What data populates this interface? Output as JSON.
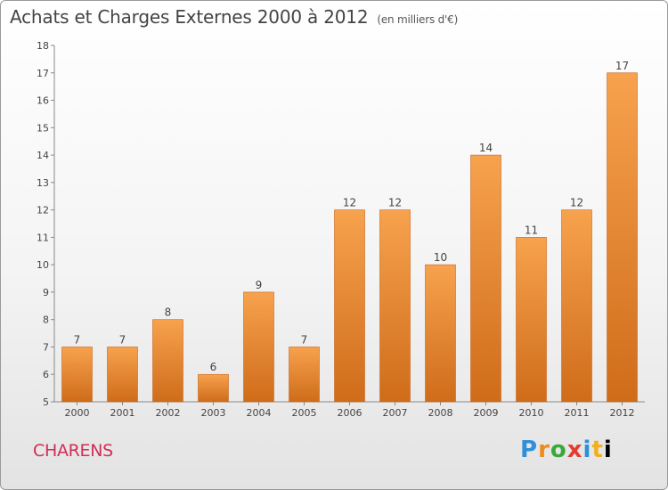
{
  "header": {
    "title": "Achats et Charges Externes 2000 à 2012",
    "unit": "(en milliers d'€)"
  },
  "footer": {
    "commune": "CHARENS",
    "brand": "Proxiti"
  },
  "colors": {
    "bar_light": "#f7a24e",
    "bar_dark": "#cf6c1a",
    "commune_text": "#d02e55"
  },
  "chart_data": {
    "type": "bar",
    "title": "Achats et Charges Externes 2000 à 2012",
    "subtitle": "(en milliers d'€)",
    "xlabel": "",
    "ylabel": "",
    "categories": [
      "2000",
      "2001",
      "2002",
      "2003",
      "2004",
      "2005",
      "2006",
      "2007",
      "2008",
      "2009",
      "2010",
      "2011",
      "2012"
    ],
    "values": [
      7,
      7,
      8,
      6,
      9,
      7,
      12,
      12,
      10,
      14,
      11,
      12,
      17
    ],
    "ylim": [
      5,
      18
    ],
    "yticks": [
      5,
      6,
      7,
      8,
      9,
      10,
      11,
      12,
      13,
      14,
      15,
      16,
      17,
      18
    ],
    "grid": false,
    "legend": "none"
  }
}
